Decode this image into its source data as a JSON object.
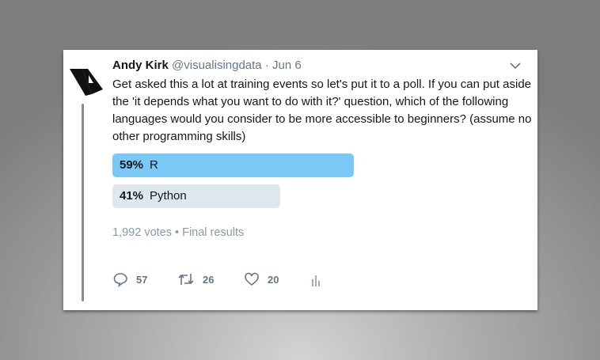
{
  "tweet": {
    "author": "Andy Kirk",
    "handle": "@visualisingdata",
    "date": "Jun 6",
    "text": "Get asked this a lot at training events so let's put it to a poll. If you can put aside the 'it depends what you want to do with it?' question, which of the following languages would you consider to be more accessible to beginners? (assume no other programming skills)"
  },
  "poll": {
    "options": [
      {
        "percent": "59%",
        "label": "R",
        "fraction": 0.59,
        "color": "#7ac8f5"
      },
      {
        "percent": "41%",
        "label": "Python",
        "fraction": 0.41,
        "color": "#e1e8ed"
      }
    ],
    "summary": "1,992 votes • Final results"
  },
  "actions": {
    "replies": "57",
    "retweets": "26",
    "likes": "20"
  }
}
